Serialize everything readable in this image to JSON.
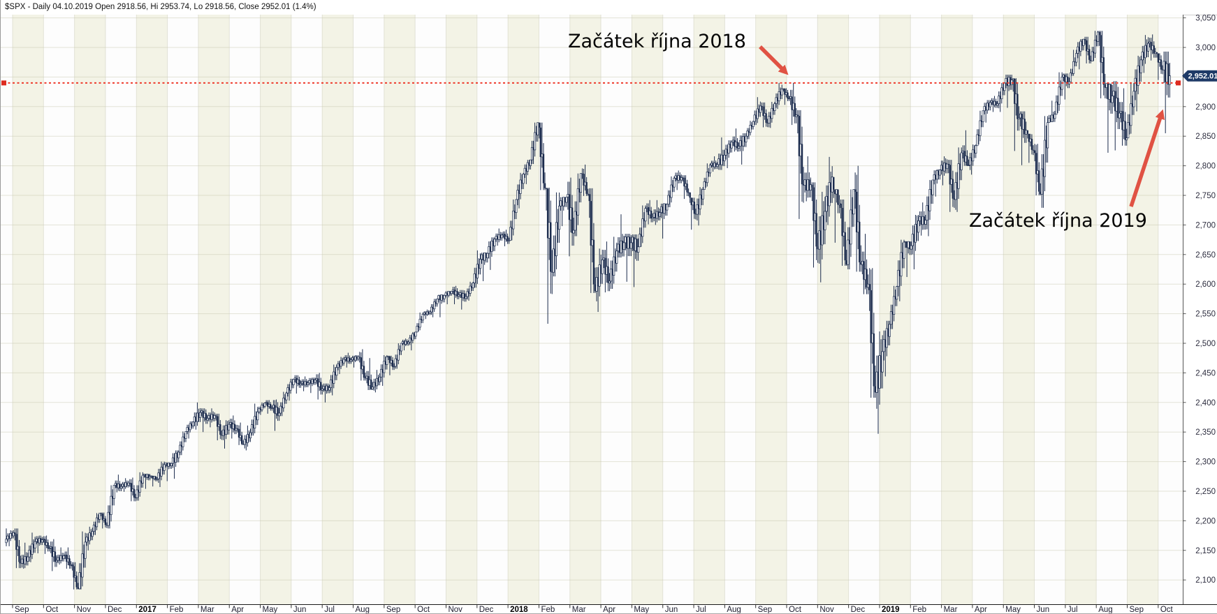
{
  "title": "$SPX - Daily 04.10.2019 Open 2918.56, Hi 2953.74, Lo 2918.56, Close 2952.01 (1.4%)",
  "annotations": {
    "oct2018": "Začátek října 2018",
    "oct2019": "Začátek října 2019"
  },
  "price_tag": "2,952.01",
  "colors": {
    "candle": "#1b2b4d",
    "candle_up_fill": "#fdfdfb",
    "stripe_cream": "#f3f3e6",
    "stripe_white": "#fdfdfd",
    "grid": "#e2e2d2",
    "ref_line_red": "#ee3a2b",
    "arrow_red": "#e05243",
    "tag_navy": "#1e3a67",
    "axis_text": "#2c2c3e"
  },
  "chart_data": {
    "type": "candlestick",
    "symbol": "$SPX",
    "period": "Daily",
    "title": "$SPX - Daily 04.10.2019 Open 2918.56, Hi 2953.74, Lo 2918.56, Close 2952.01 (1.4%)",
    "last_quote": {
      "date": "04.10.2019",
      "open": 2918.56,
      "high": 2953.74,
      "low": 2918.56,
      "close": 2952.01,
      "change_pct": "1.4%"
    },
    "x_labels": [
      "Sep",
      "Oct",
      "Nov",
      "Dec",
      "2017",
      "Feb",
      "Mar",
      "Apr",
      "May",
      "Jun",
      "Jul",
      "Aug",
      "Sep",
      "Oct",
      "Nov",
      "Dec",
      "2018",
      "Feb",
      "Mar",
      "Apr",
      "May",
      "Jun",
      "Jul",
      "Aug",
      "Sep",
      "Oct",
      "Nov",
      "Dec",
      "2019",
      "Feb",
      "Mar",
      "Apr",
      "May",
      "Jun",
      "Jul",
      "Aug",
      "Sep",
      "Oct"
    ],
    "y_ticks": [
      3050,
      3000,
      2950,
      2900,
      2850,
      2800,
      2750,
      2700,
      2650,
      2600,
      2550,
      2500,
      2450,
      2400,
      2350,
      2300,
      2250,
      2200,
      2150,
      2100
    ],
    "ylim": [
      2100,
      3050
    ],
    "grid": true,
    "reference_line": {
      "value": 2940,
      "style": "dashed",
      "note": "horizontal level from early October 2018 peak to current price"
    },
    "last_price_marker": 2952.01,
    "bars_note": "approx weekly [high, low, close] samples, late Aug 2016 - 04 Oct 2019",
    "bars": [
      [
        2187,
        2157,
        2169
      ],
      [
        2184,
        2157,
        2180
      ],
      [
        2187,
        2120,
        2128
      ],
      [
        2163,
        2119,
        2139
      ],
      [
        2180,
        2130,
        2165
      ],
      [
        2175,
        2145,
        2168
      ],
      [
        2175,
        2144,
        2154
      ],
      [
        2169,
        2115,
        2133
      ],
      [
        2155,
        2126,
        2141
      ],
      [
        2155,
        2119,
        2126
      ],
      [
        2130,
        2084,
        2085
      ],
      [
        2182,
        2084,
        2164
      ],
      [
        2190,
        2150,
        2182
      ],
      [
        2213,
        2176,
        2213
      ],
      [
        2214,
        2187,
        2192
      ],
      [
        2260,
        2187,
        2260
      ],
      [
        2278,
        2248,
        2258
      ],
      [
        2272,
        2249,
        2264
      ],
      [
        2273,
        2233,
        2239
      ],
      [
        2282,
        2234,
        2277
      ],
      [
        2279,
        2254,
        2275
      ],
      [
        2276,
        2258,
        2271
      ],
      [
        2300,
        2257,
        2295
      ],
      [
        2298,
        2267,
        2297
      ],
      [
        2319,
        2271,
        2316
      ],
      [
        2351,
        2311,
        2351
      ],
      [
        2368,
        2339,
        2367
      ],
      [
        2400,
        2354,
        2383
      ],
      [
        2390,
        2350,
        2373
      ],
      [
        2390,
        2358,
        2378
      ],
      [
        2381,
        2336,
        2344
      ],
      [
        2370,
        2322,
        2363
      ],
      [
        2378,
        2339,
        2356
      ],
      [
        2366,
        2328,
        2329
      ],
      [
        2361,
        2319,
        2349
      ],
      [
        2398,
        2344,
        2384
      ],
      [
        2400,
        2379,
        2399
      ],
      [
        2404,
        2381,
        2391
      ],
      [
        2405,
        2352,
        2382
      ],
      [
        2418,
        2377,
        2416
      ],
      [
        2440,
        2403,
        2439
      ],
      [
        2446,
        2415,
        2432
      ],
      [
        2444,
        2419,
        2433
      ],
      [
        2442,
        2416,
        2438
      ],
      [
        2450,
        2405,
        2423
      ],
      [
        2432,
        2400,
        2425
      ],
      [
        2464,
        2412,
        2459
      ],
      [
        2477,
        2448,
        2473
      ],
      [
        2484,
        2459,
        2472
      ],
      [
        2480,
        2459,
        2477
      ],
      [
        2490,
        2437,
        2441
      ],
      [
        2475,
        2421,
        2426
      ],
      [
        2455,
        2417,
        2443
      ],
      [
        2480,
        2428,
        2477
      ],
      [
        2479,
        2446,
        2461
      ],
      [
        2500,
        2457,
        2500
      ],
      [
        2508,
        2488,
        2502
      ],
      [
        2519,
        2488,
        2519
      ],
      [
        2552,
        2520,
        2549
      ],
      [
        2557,
        2541,
        2553
      ],
      [
        2575,
        2544,
        2575
      ],
      [
        2582,
        2544,
        2581
      ],
      [
        2588,
        2566,
        2588
      ],
      [
        2597,
        2566,
        2582
      ],
      [
        2590,
        2557,
        2579
      ],
      [
        2604,
        2572,
        2602
      ],
      [
        2657,
        2594,
        2642
      ],
      [
        2653,
        2605,
        2652
      ],
      [
        2679,
        2624,
        2676
      ],
      [
        2694,
        2665,
        2683
      ],
      [
        2692,
        2664,
        2674
      ],
      [
        2743,
        2674,
        2743
      ],
      [
        2788,
        2728,
        2786
      ],
      [
        2810,
        2769,
        2810
      ],
      [
        2873,
        2803,
        2873
      ],
      [
        2873,
        2759,
        2762
      ],
      [
        2763,
        2533,
        2620
      ],
      [
        2755,
        2613,
        2732
      ],
      [
        2747,
        2698,
        2747
      ],
      [
        2780,
        2647,
        2691
      ],
      [
        2787,
        2681,
        2787
      ],
      [
        2802,
        2749,
        2752
      ],
      [
        2762,
        2585,
        2588
      ],
      [
        2660,
        2553,
        2641
      ],
      [
        2672,
        2586,
        2605
      ],
      [
        2680,
        2592,
        2656
      ],
      [
        2718,
        2645,
        2670
      ],
      [
        2685,
        2604,
        2670
      ],
      [
        2684,
        2595,
        2663
      ],
      [
        2733,
        2663,
        2728
      ],
      [
        2742,
        2701,
        2713
      ],
      [
        2742,
        2700,
        2721
      ],
      [
        2736,
        2677,
        2735
      ],
      [
        2782,
        2730,
        2779
      ],
      [
        2792,
        2759,
        2780
      ],
      [
        2784,
        2744,
        2755
      ],
      [
        2746,
        2692,
        2718
      ],
      [
        2764,
        2699,
        2760
      ],
      [
        2804,
        2763,
        2801
      ],
      [
        2816,
        2790,
        2802
      ],
      [
        2848,
        2793,
        2818
      ],
      [
        2843,
        2796,
        2840
      ],
      [
        2863,
        2824,
        2833
      ],
      [
        2855,
        2802,
        2850
      ],
      [
        2876,
        2845,
        2875
      ],
      [
        2916,
        2869,
        2901
      ],
      [
        2907,
        2865,
        2872
      ],
      [
        2908,
        2864,
        2905
      ],
      [
        2940,
        2896,
        2930
      ],
      [
        2931,
        2903,
        2914
      ],
      [
        2940,
        2869,
        2886
      ],
      [
        2894,
        2710,
        2767
      ],
      [
        2816,
        2740,
        2768
      ],
      [
        2772,
        2628,
        2659
      ],
      [
        2756,
        2603,
        2723
      ],
      [
        2815,
        2700,
        2781
      ],
      [
        2760,
        2670,
        2736
      ],
      [
        2743,
        2631,
        2633
      ],
      [
        2760,
        2625,
        2760
      ],
      [
        2800,
        2621,
        2633
      ],
      [
        2685,
        2583,
        2600
      ],
      [
        2627,
        2408,
        2417
      ],
      [
        2520,
        2347,
        2486
      ],
      [
        2538,
        2444,
        2532
      ],
      [
        2597,
        2524,
        2596
      ],
      [
        2675,
        2571,
        2671
      ],
      [
        2672,
        2612,
        2665
      ],
      [
        2717,
        2625,
        2707
      ],
      [
        2738,
        2682,
        2708
      ],
      [
        2776,
        2681,
        2776
      ],
      [
        2794,
        2748,
        2793
      ],
      [
        2816,
        2767,
        2803
      ],
      [
        2810,
        2722,
        2743
      ],
      [
        2831,
        2722,
        2822
      ],
      [
        2860,
        2800,
        2801
      ],
      [
        2836,
        2785,
        2834
      ],
      [
        2893,
        2836,
        2893
      ],
      [
        2911,
        2873,
        2907
      ],
      [
        2918,
        2891,
        2905
      ],
      [
        2940,
        2891,
        2940
      ],
      [
        2954,
        2898,
        2945
      ],
      [
        2948,
        2825,
        2881
      ],
      [
        2892,
        2801,
        2860
      ],
      [
        2854,
        2805,
        2826
      ],
      [
        2837,
        2750,
        2752
      ],
      [
        2884,
        2729,
        2873
      ],
      [
        2910,
        2874,
        2887
      ],
      [
        2958,
        2889,
        2950
      ],
      [
        2956,
        2912,
        2942
      ],
      [
        2996,
        2952,
        2990
      ],
      [
        3014,
        2963,
        3014
      ],
      [
        3018,
        2973,
        2977
      ],
      [
        3028,
        2977,
        3026
      ],
      [
        3028,
        2914,
        2932
      ],
      [
        2939,
        2822,
        2918
      ],
      [
        2943,
        2826,
        2889
      ],
      [
        2931,
        2834,
        2847
      ],
      [
        2940,
        2853,
        2926
      ],
      [
        2986,
        2892,
        2979
      ],
      [
        3021,
        2957,
        3007
      ],
      [
        3022,
        2978,
        2992
      ],
      [
        2990,
        2945,
        2962
      ],
      [
        2993,
        2855,
        2952.01
      ]
    ]
  }
}
